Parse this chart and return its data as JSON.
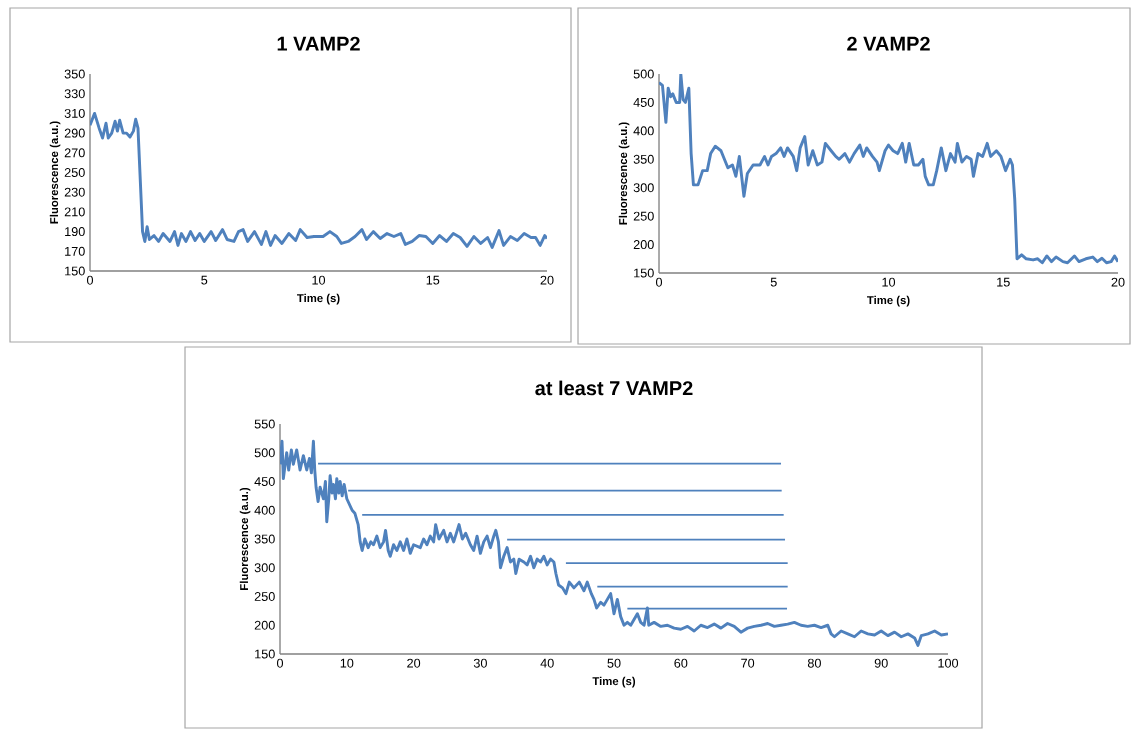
{
  "chart_data": [
    {
      "type": "line",
      "title": "1 VAMP2",
      "xlabel": "Time (s)",
      "ylabel": "Fluorescence (a.u.)",
      "xlim": [
        0,
        20
      ],
      "xticks": [
        0,
        5,
        10,
        15,
        20
      ],
      "ylim": [
        150,
        350
      ],
      "yticks": [
        150,
        170,
        190,
        210,
        230,
        250,
        270,
        290,
        310,
        330,
        350
      ],
      "series": [
        {
          "color": "#4f81bd",
          "x": [
            0,
            0.2,
            0.4,
            0.55,
            0.7,
            0.8,
            0.95,
            1.1,
            1.2,
            1.3,
            1.45,
            1.6,
            1.75,
            1.9,
            2.0,
            2.1,
            2.3,
            2.4,
            2.5,
            2.6,
            2.8,
            3.0,
            3.2,
            3.5,
            3.7,
            3.85,
            4.0,
            4.2,
            4.4,
            4.6,
            4.8,
            5.0,
            5.3,
            5.5,
            5.8,
            6.0,
            6.3,
            6.5,
            6.7,
            6.9,
            7.2,
            7.5,
            7.7,
            7.9,
            8.1,
            8.4,
            8.7,
            9.0,
            9.2,
            9.5,
            9.8,
            10.2,
            10.5,
            10.8,
            11.0,
            11.3,
            11.6,
            11.9,
            12.1,
            12.4,
            12.7,
            13.0,
            13.3,
            13.6,
            13.8,
            14.1,
            14.4,
            14.7,
            15.0,
            15.3,
            15.6,
            15.9,
            16.2,
            16.5,
            16.8,
            17.1,
            17.4,
            17.6,
            17.9,
            18.1,
            18.4,
            18.7,
            19.0,
            19.3,
            19.5,
            19.7,
            19.9,
            20.0
          ],
          "values": [
            298,
            310,
            295,
            285,
            300,
            285,
            290,
            302,
            292,
            303,
            290,
            290,
            286,
            292,
            304,
            295,
            190,
            180,
            195,
            182,
            186,
            180,
            188,
            180,
            190,
            176,
            188,
            180,
            190,
            181,
            188,
            180,
            190,
            181,
            192,
            182,
            180,
            190,
            192,
            180,
            190,
            177,
            190,
            176,
            186,
            178,
            188,
            181,
            192,
            184,
            185,
            185,
            190,
            185,
            178,
            180,
            185,
            192,
            182,
            190,
            183,
            188,
            185,
            188,
            177,
            180,
            186,
            185,
            178,
            186,
            180,
            188,
            184,
            175,
            185,
            178,
            184,
            174,
            191,
            176,
            185,
            181,
            188,
            184,
            184,
            176,
            186,
            183
          ]
        }
      ]
    },
    {
      "type": "line",
      "title": "2 VAMP2",
      "xlabel": "Time (s)",
      "ylabel": "Fluorescence (a.u.)",
      "xlim": [
        0,
        20
      ],
      "xticks": [
        0,
        5,
        10,
        15,
        20
      ],
      "ylim": [
        150,
        500
      ],
      "yticks": [
        150,
        200,
        250,
        300,
        350,
        400,
        450,
        500
      ],
      "series": [
        {
          "color": "#4f81bd",
          "x": [
            0,
            0.15,
            0.3,
            0.4,
            0.5,
            0.6,
            0.75,
            0.9,
            0.95,
            1.05,
            1.15,
            1.3,
            1.4,
            1.5,
            1.7,
            1.9,
            2.1,
            2.25,
            2.45,
            2.7,
            2.85,
            3.0,
            3.2,
            3.35,
            3.5,
            3.7,
            3.85,
            4.1,
            4.4,
            4.6,
            4.75,
            4.9,
            5.1,
            5.3,
            5.45,
            5.6,
            5.85,
            6.0,
            6.15,
            6.35,
            6.5,
            6.7,
            6.9,
            7.1,
            7.25,
            7.5,
            7.7,
            7.85,
            8.1,
            8.3,
            8.5,
            8.75,
            8.9,
            9.05,
            9.3,
            9.5,
            9.6,
            9.85,
            10.0,
            10.2,
            10.4,
            10.6,
            10.75,
            10.9,
            11.1,
            11.3,
            11.5,
            11.6,
            11.75,
            11.95,
            12.1,
            12.3,
            12.5,
            12.7,
            12.9,
            13.0,
            13.2,
            13.4,
            13.6,
            13.7,
            13.9,
            14.1,
            14.3,
            14.45,
            14.7,
            14.9,
            15.1,
            15.3,
            15.4,
            15.5,
            15.6,
            15.8,
            16.0,
            16.3,
            16.5,
            16.7,
            16.9,
            17.1,
            17.3,
            17.6,
            17.8,
            18.1,
            18.3,
            18.6,
            18.9,
            19.1,
            19.3,
            19.5,
            19.7,
            19.85,
            20.0
          ],
          "values": [
            485,
            480,
            415,
            475,
            460,
            465,
            450,
            450,
            500,
            455,
            450,
            475,
            360,
            305,
            305,
            330,
            330,
            360,
            373,
            365,
            350,
            335,
            340,
            320,
            355,
            285,
            325,
            340,
            340,
            355,
            340,
            355,
            360,
            370,
            355,
            370,
            355,
            330,
            370,
            390,
            340,
            365,
            340,
            345,
            378,
            365,
            355,
            350,
            360,
            345,
            360,
            375,
            355,
            370,
            355,
            345,
            330,
            365,
            375,
            365,
            360,
            378,
            345,
            378,
            340,
            340,
            350,
            320,
            305,
            305,
            330,
            370,
            330,
            360,
            345,
            378,
            345,
            355,
            350,
            320,
            360,
            355,
            378,
            355,
            365,
            355,
            330,
            350,
            340,
            280,
            175,
            182,
            175,
            173,
            175,
            168,
            180,
            170,
            178,
            170,
            168,
            180,
            170,
            175,
            178,
            170,
            176,
            168,
            170,
            180,
            170
          ]
        }
      ]
    },
    {
      "type": "line",
      "title": "at least 7 VAMP2",
      "xlabel": "Time (s)",
      "ylabel": "Fluorescence (a.u.)",
      "xlim": [
        0,
        100
      ],
      "xticks": [
        0,
        10,
        20,
        30,
        40,
        50,
        60,
        70,
        80,
        90,
        100
      ],
      "ylim": [
        150,
        550
      ],
      "yticks": [
        150,
        200,
        250,
        300,
        350,
        400,
        450,
        500,
        550
      ],
      "series": [
        {
          "color": "#4f81bd",
          "x": [
            0,
            0.3,
            0.5,
            1,
            1.3,
            1.7,
            2,
            2.5,
            3,
            3.5,
            4,
            4.4,
            4.7,
            5.0,
            5.2,
            5.4,
            5.7,
            6.0,
            6.5,
            6.8,
            7.0,
            7.3,
            7.5,
            7.8,
            8.0,
            8.3,
            8.5,
            8.8,
            9.0,
            9.3,
            9.6,
            10,
            10.4,
            10.8,
            11.2,
            11.7,
            12.0,
            12.3,
            12.7,
            13.2,
            13.6,
            14.0,
            14.5,
            15.0,
            15.5,
            15.8,
            16.2,
            16.5,
            17,
            17.5,
            18,
            18.5,
            19,
            19.5,
            20,
            21,
            21.5,
            22,
            22.5,
            23,
            23.3,
            23.8,
            24.5,
            25,
            25.5,
            26,
            26.8,
            27.3,
            27.8,
            28.5,
            29,
            29.5,
            30,
            30.5,
            31,
            31.5,
            32,
            32.3,
            32.7,
            33.0,
            33.5,
            34,
            34.5,
            35,
            35.3,
            35.8,
            36.5,
            37,
            37.5,
            38,
            38.5,
            39,
            39.5,
            40,
            40.5,
            41,
            41.3,
            41.7,
            42.3,
            42.8,
            43.3,
            44,
            44.8,
            45.5,
            46,
            46.6,
            47,
            47.4,
            48,
            48.5,
            49,
            49.5,
            50,
            50.5,
            51,
            51.5,
            52,
            52.5,
            53,
            53.5,
            54,
            54.5,
            55,
            55.2,
            56,
            57,
            58,
            59,
            60,
            61,
            62,
            63,
            64,
            65,
            66,
            67,
            68,
            69,
            70,
            71,
            72,
            73,
            74,
            75,
            76,
            77,
            78,
            79,
            80,
            81,
            82,
            82.5,
            83,
            84,
            85,
            86,
            87,
            88,
            89,
            90,
            91,
            92,
            93,
            94,
            95,
            95.5,
            96,
            97,
            98,
            99,
            100
          ],
          "values": [
            480,
            520,
            455,
            500,
            470,
            505,
            480,
            505,
            470,
            495,
            470,
            490,
            465,
            520,
            470,
            440,
            415,
            440,
            420,
            450,
            380,
            420,
            460,
            430,
            445,
            420,
            455,
            430,
            450,
            425,
            445,
            420,
            410,
            400,
            395,
            375,
            345,
            330,
            350,
            335,
            345,
            340,
            355,
            335,
            345,
            365,
            330,
            320,
            340,
            330,
            345,
            330,
            350,
            325,
            340,
            335,
            350,
            340,
            355,
            345,
            375,
            350,
            365,
            345,
            360,
            345,
            375,
            350,
            360,
            340,
            330,
            355,
            325,
            345,
            355,
            335,
            355,
            365,
            345,
            300,
            320,
            335,
            310,
            315,
            290,
            315,
            310,
            305,
            320,
            300,
            315,
            310,
            320,
            305,
            315,
            310,
            290,
            270,
            265,
            255,
            275,
            265,
            275,
            260,
            275,
            255,
            245,
            230,
            240,
            235,
            245,
            255,
            220,
            245,
            215,
            200,
            205,
            200,
            210,
            220,
            205,
            200,
            230,
            200,
            205,
            198,
            200,
            195,
            193,
            198,
            190,
            200,
            196,
            202,
            195,
            203,
            198,
            188,
            195,
            198,
            200,
            203,
            198,
            200,
            202,
            205,
            200,
            198,
            200,
            196,
            200,
            185,
            180,
            190,
            185,
            180,
            190,
            185,
            183,
            190,
            182,
            188,
            180,
            185,
            178,
            165,
            182,
            185,
            190,
            183,
            185
          ]
        },
        {
          "color": "#4f81bd",
          "x": [
            5.7,
            75.0
          ],
          "values": [
            481,
            481
          ]
        },
        {
          "color": "#4f81bd",
          "x": [
            10.2,
            75.1
          ],
          "values": [
            434,
            434
          ]
        },
        {
          "color": "#4f81bd",
          "x": [
            12.3,
            75.4
          ],
          "values": [
            392,
            392
          ]
        },
        {
          "color": "#4f81bd",
          "x": [
            34.0,
            75.6
          ],
          "values": [
            349,
            349
          ]
        },
        {
          "color": "#4f81bd",
          "x": [
            42.8,
            76.0
          ],
          "values": [
            308,
            308
          ]
        },
        {
          "color": "#4f81bd",
          "x": [
            47.5,
            76.0
          ],
          "values": [
            267,
            267
          ]
        },
        {
          "color": "#4f81bd",
          "x": [
            52.0,
            75.9
          ],
          "values": [
            229,
            229
          ]
        }
      ]
    }
  ]
}
